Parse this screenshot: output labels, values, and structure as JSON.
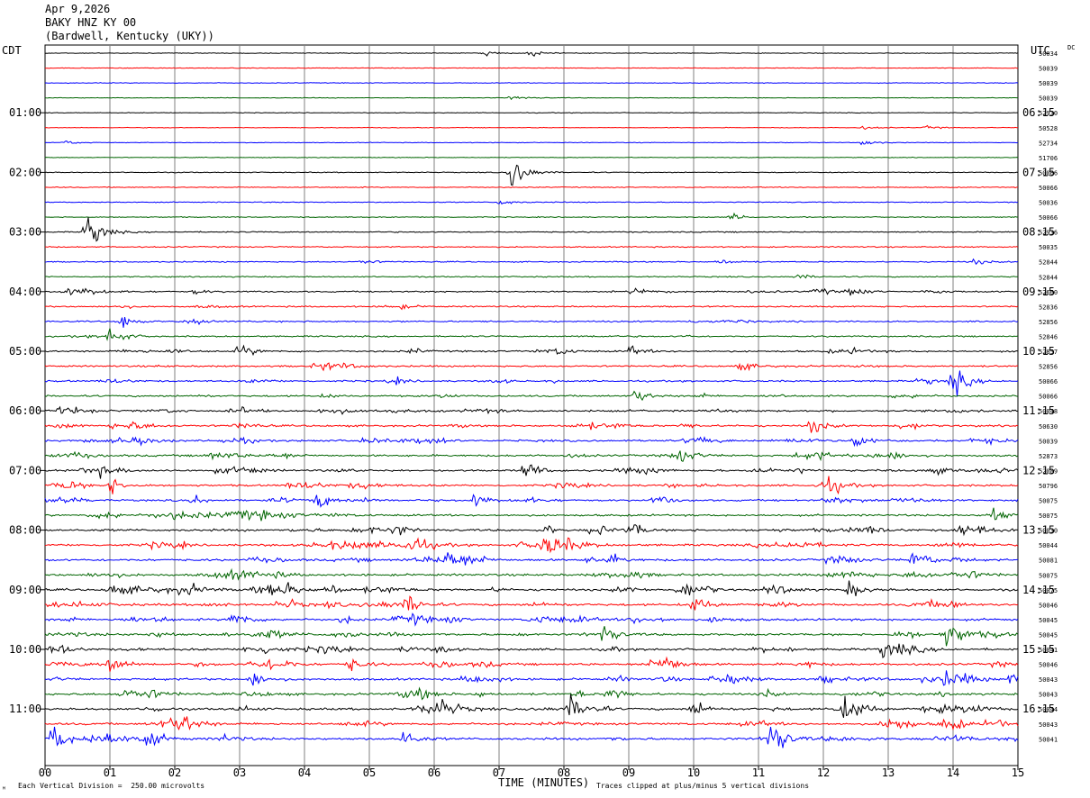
{
  "header": {
    "date": "Apr 9,2026",
    "station": "BAKY HNZ KY 00",
    "location": "(Bardwell, Kentucky (UKY))"
  },
  "left_zone": "CDT",
  "right_zone": "UTC",
  "dc_label": "DC",
  "footer": {
    "scale_note": "Each Vertical Division =  250.00 microvolts",
    "clip_note": "Traces clipped at plus/minus 5 vertical divisions",
    "corner_mark": "ᴹ"
  },
  "colors": {
    "black": "#000000",
    "red": "#ff0000",
    "blue": "#0000ff",
    "green": "#006400",
    "grid": "#808080"
  },
  "chart_data": {
    "type": "line",
    "xlabel": "TIME (MINUTES)",
    "xlim": [
      0,
      15
    ],
    "x_ticks": [
      "00",
      "01",
      "02",
      "03",
      "04",
      "05",
      "06",
      "07",
      "08",
      "09",
      "10",
      "11",
      "12",
      "13",
      "14",
      "15"
    ],
    "trace_color_cycle": [
      "black",
      "red",
      "blue",
      "green"
    ],
    "left_time_labels": [
      {
        "trace": 4,
        "label": "01:00"
      },
      {
        "trace": 8,
        "label": "02:00"
      },
      {
        "trace": 12,
        "label": "03:00"
      },
      {
        "trace": 16,
        "label": "04:00"
      },
      {
        "trace": 20,
        "label": "05:00"
      },
      {
        "trace": 24,
        "label": "06:00"
      },
      {
        "trace": 28,
        "label": "07:00"
      },
      {
        "trace": 32,
        "label": "08:00"
      },
      {
        "trace": 36,
        "label": "09:00"
      },
      {
        "trace": 40,
        "label": "10:00"
      },
      {
        "trace": 44,
        "label": "11:00"
      }
    ],
    "right_time_labels": [
      {
        "trace": 4,
        "label": "06:15"
      },
      {
        "trace": 8,
        "label": "07:15"
      },
      {
        "trace": 12,
        "label": "08:15"
      },
      {
        "trace": 16,
        "label": "09:15"
      },
      {
        "trace": 20,
        "label": "10:15"
      },
      {
        "trace": 24,
        "label": "11:15"
      },
      {
        "trace": 28,
        "label": "12:15"
      },
      {
        "trace": 32,
        "label": "13:15"
      },
      {
        "trace": 36,
        "label": "14:15"
      },
      {
        "trace": 40,
        "label": "15:15"
      },
      {
        "trace": 44,
        "label": "16:15"
      }
    ],
    "dc_offsets": [
      "50034",
      "50039",
      "50039",
      "50039",
      "52930",
      "50528",
      "52734",
      "51706",
      "50066",
      "50066",
      "50036",
      "50066",
      "52936",
      "50035",
      "52844",
      "52844",
      "52660",
      "52836",
      "52856",
      "52846",
      "52857",
      "52856",
      "50066",
      "50066",
      "50048",
      "50630",
      "50039",
      "52873",
      "52089",
      "50796",
      "50075",
      "50075",
      "50030",
      "50044",
      "50081",
      "50075",
      "50075",
      "50046",
      "50045",
      "50045",
      "50041",
      "50046",
      "50043",
      "50043",
      "50044",
      "50043",
      "50041"
    ],
    "activity_level": [
      1,
      1,
      1,
      1,
      1,
      1,
      1,
      1,
      2,
      2,
      2,
      2,
      3,
      3,
      3,
      3,
      4,
      4,
      4,
      4,
      5,
      5,
      5,
      5,
      6,
      6,
      6,
      6,
      6,
      6,
      6,
      6,
      7,
      7,
      7,
      7,
      7,
      7,
      7,
      7,
      7,
      7,
      7,
      7,
      7,
      7,
      7
    ],
    "events": [
      {
        "trace": 0,
        "minute": 6.8,
        "amp": 4
      },
      {
        "trace": 0,
        "minute": 7.5,
        "amp": 6
      },
      {
        "trace": 3,
        "minute": 7.2,
        "amp": 5
      },
      {
        "trace": 5,
        "minute": 12.6,
        "amp": 3
      },
      {
        "trace": 5,
        "minute": 13.6,
        "amp": 3
      },
      {
        "trace": 6,
        "minute": 0.3,
        "amp": 4
      },
      {
        "trace": 6,
        "minute": 12.6,
        "amp": 6
      },
      {
        "trace": 8,
        "minute": 7.2,
        "amp": 40
      },
      {
        "trace": 10,
        "minute": 7.0,
        "amp": 6
      },
      {
        "trace": 11,
        "minute": 10.6,
        "amp": 6
      },
      {
        "trace": 12,
        "minute": 0.65,
        "amp": 40
      },
      {
        "trace": 14,
        "minute": 4.9,
        "amp": 5
      },
      {
        "trace": 14,
        "minute": 10.4,
        "amp": 5
      },
      {
        "trace": 14,
        "minute": 14.3,
        "amp": 6
      },
      {
        "trace": 15,
        "minute": 11.6,
        "amp": 5
      },
      {
        "trace": 16,
        "minute": 0.3,
        "amp": 6
      },
      {
        "trace": 16,
        "minute": 2.3,
        "amp": 5
      },
      {
        "trace": 16,
        "minute": 9.1,
        "amp": 10
      },
      {
        "trace": 16,
        "minute": 11.9,
        "amp": 8
      },
      {
        "trace": 16,
        "minute": 12.4,
        "amp": 8
      },
      {
        "trace": 18,
        "minute": 1.2,
        "amp": 12
      },
      {
        "trace": 19,
        "minute": 1.0,
        "amp": 20
      },
      {
        "trace": 20,
        "minute": 3.0,
        "amp": 14
      },
      {
        "trace": 20,
        "minute": 9.0,
        "amp": 10
      },
      {
        "trace": 22,
        "minute": 14.0,
        "amp": 30
      },
      {
        "trace": 23,
        "minute": 9.1,
        "amp": 14
      },
      {
        "trace": 24,
        "minute": 0.2,
        "amp": 8
      },
      {
        "trace": 25,
        "minute": 11.8,
        "amp": 16
      },
      {
        "trace": 26,
        "minute": 12.5,
        "amp": 14
      },
      {
        "trace": 27,
        "minute": 9.8,
        "amp": 16
      },
      {
        "trace": 28,
        "minute": 7.4,
        "amp": 20
      },
      {
        "trace": 29,
        "minute": 1.0,
        "amp": 16
      },
      {
        "trace": 29,
        "minute": 12.1,
        "amp": 18
      },
      {
        "trace": 30,
        "minute": 4.2,
        "amp": 16
      },
      {
        "trace": 30,
        "minute": 6.6,
        "amp": 14
      },
      {
        "trace": 31,
        "minute": 14.6,
        "amp": 20
      },
      {
        "trace": 33,
        "minute": 7.7,
        "amp": 20
      },
      {
        "trace": 33,
        "minute": 5.6,
        "amp": 14
      },
      {
        "trace": 34,
        "minute": 6.2,
        "amp": 18
      },
      {
        "trace": 34,
        "minute": 13.4,
        "amp": 24
      },
      {
        "trace": 36,
        "minute": 1.0,
        "amp": 14
      },
      {
        "trace": 36,
        "minute": 9.8,
        "amp": 14
      },
      {
        "trace": 36,
        "minute": 12.4,
        "amp": 16
      },
      {
        "trace": 37,
        "minute": 5.6,
        "amp": 20
      },
      {
        "trace": 37,
        "minute": 10.0,
        "amp": 18
      },
      {
        "trace": 38,
        "minute": 2.9,
        "amp": 20
      },
      {
        "trace": 39,
        "minute": 8.6,
        "amp": 20
      },
      {
        "trace": 39,
        "minute": 13.9,
        "amp": 18
      },
      {
        "trace": 40,
        "minute": 12.9,
        "amp": 16
      },
      {
        "trace": 41,
        "minute": 1.0,
        "amp": 20
      },
      {
        "trace": 41,
        "minute": 4.7,
        "amp": 14
      },
      {
        "trace": 42,
        "minute": 14.9,
        "amp": 14
      },
      {
        "trace": 42,
        "minute": 3.2,
        "amp": 14
      },
      {
        "trace": 43,
        "minute": 8.7,
        "amp": 16
      },
      {
        "trace": 44,
        "minute": 8.1,
        "amp": 24
      },
      {
        "trace": 44,
        "minute": 12.3,
        "amp": 20
      },
      {
        "trace": 44,
        "minute": 10.0,
        "amp": 18
      },
      {
        "trace": 46,
        "minute": 0.1,
        "amp": 30
      },
      {
        "trace": 46,
        "minute": 5.5,
        "amp": 20
      },
      {
        "trace": 46,
        "minute": 11.2,
        "amp": 30
      }
    ]
  }
}
